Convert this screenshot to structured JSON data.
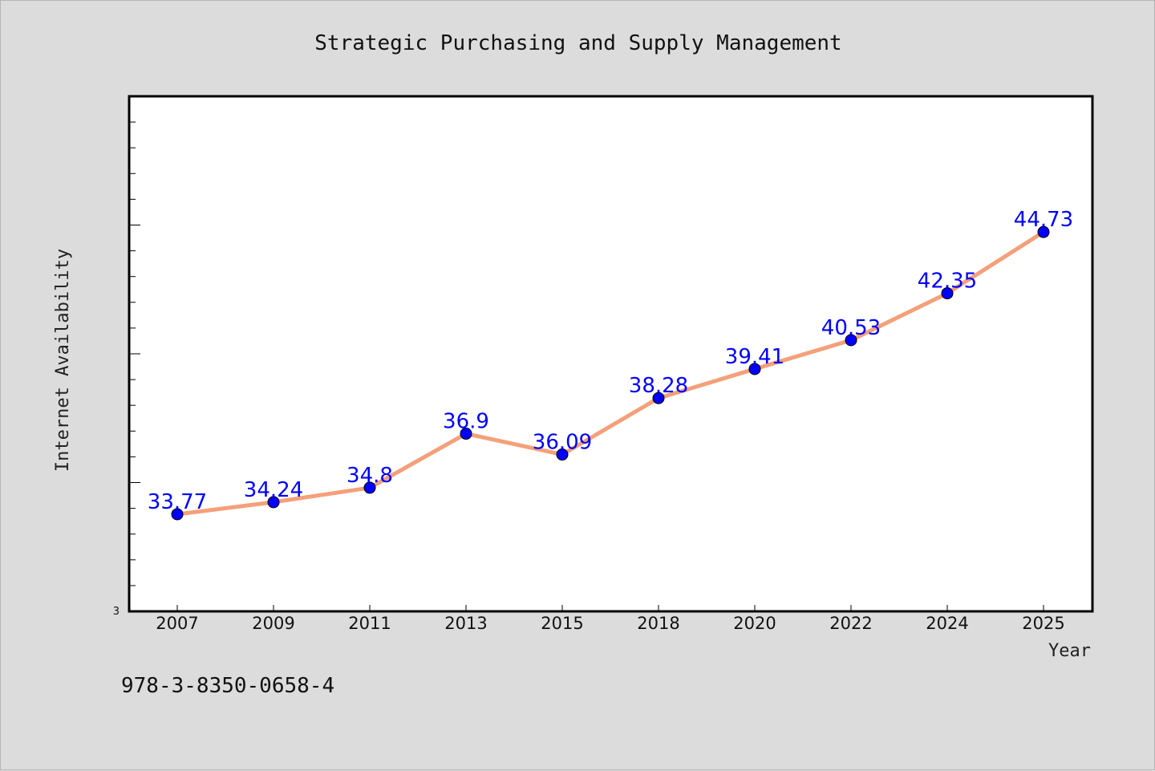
{
  "chart_data": {
    "type": "line",
    "title": "Strategic Purchasing and Supply Management",
    "xlabel": "Year",
    "ylabel": "Internet Availability",
    "categories": [
      "2007",
      "2009",
      "2011",
      "2013",
      "2015",
      "2018",
      "2020",
      "2022",
      "2024",
      "2025"
    ],
    "series": [
      {
        "values": [
          33.77,
          34.24,
          34.8,
          36.9,
          36.09,
          38.28,
          39.41,
          40.53,
          42.35,
          44.73
        ],
        "labels": [
          "33.77",
          "34.24",
          "34.8",
          "36.9",
          "36.09",
          "38.28",
          "39.41",
          "40.53",
          "42.35",
          "44.73"
        ]
      }
    ],
    "y_tick_labels": [
      "3"
    ],
    "ylim": [
      30,
      50
    ],
    "grid": false,
    "colors": {
      "line": "#f4a07a",
      "marker": "#0000ff",
      "data_label": "#0000ff"
    }
  },
  "footer": {
    "isbn": "978-3-8350-0658-4"
  }
}
